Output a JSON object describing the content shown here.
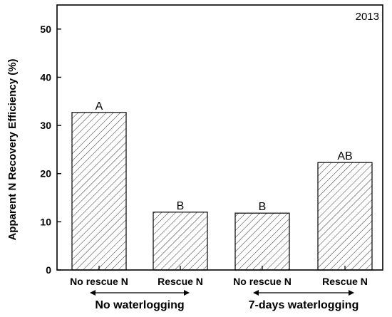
{
  "chart_data": {
    "type": "bar",
    "annotation": "2013",
    "ylabel": "Apparent N Recovery Efficiency (%)",
    "ylim": [
      0,
      55
    ],
    "yticks": [
      0,
      10,
      20,
      30,
      40,
      50
    ],
    "grid": false,
    "pattern": "diagonal-hatch",
    "categories": [
      "No rescue N",
      "Rescue N",
      "No rescue N",
      "Rescue N"
    ],
    "values": [
      32.7,
      12.0,
      11.8,
      22.3
    ],
    "significance": [
      "A",
      "B",
      "B",
      "AB"
    ],
    "groups": [
      {
        "label": "No waterlogging",
        "categories": [
          0,
          1
        ]
      },
      {
        "label": "7-days waterlogging",
        "categories": [
          2,
          3
        ]
      }
    ]
  }
}
